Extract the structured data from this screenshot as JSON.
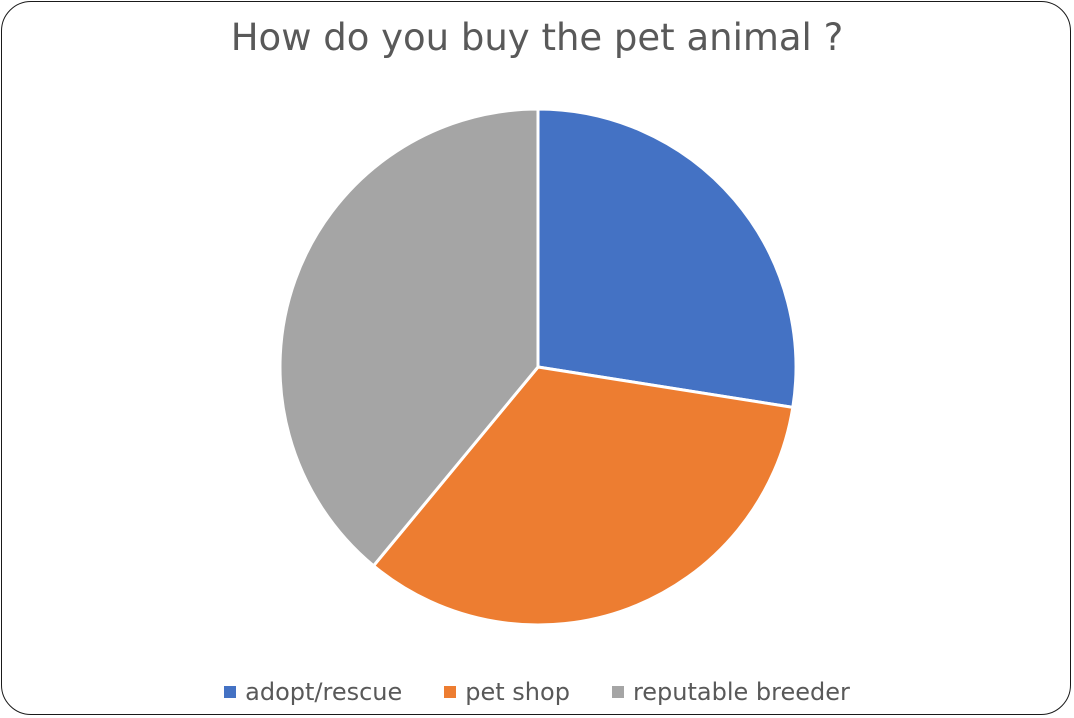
{
  "chart_data": {
    "type": "pie",
    "title": "How do you buy the pet animal ?",
    "categories": [
      "adopt/rescue",
      "pet shop",
      "reputable breeder"
    ],
    "values": [
      27.5,
      33.5,
      39
    ],
    "colors": [
      "#4472C4",
      "#ED7D31",
      "#A5A5A5"
    ],
    "start_angle_deg": 0,
    "direction": "clockwise",
    "legend_position": "bottom"
  }
}
